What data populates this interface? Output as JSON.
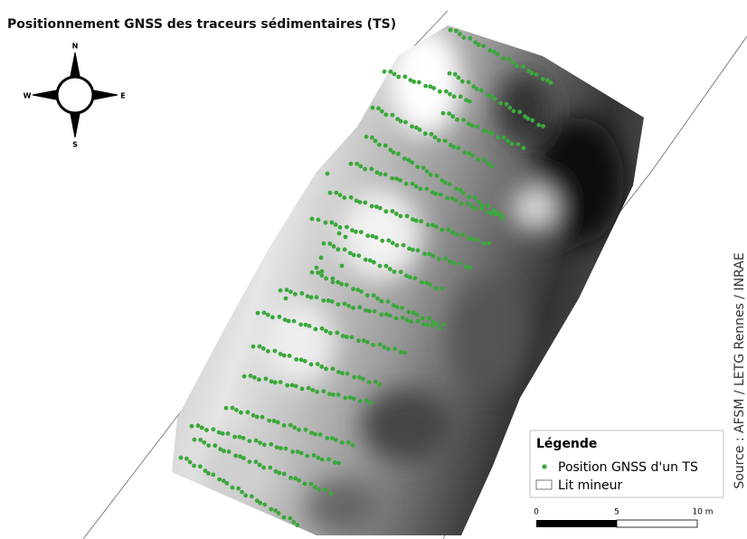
{
  "title": "Positionnement GNSS des traceurs sédimentaires (TS)",
  "compass": {
    "north": "N",
    "south": "S",
    "west": "W",
    "east": "E"
  },
  "legend": {
    "title": "Légende",
    "entries": [
      "Position GNSS d'un TS",
      "Lit mineur"
    ]
  },
  "scale_bar": {
    "labels": [
      "0",
      "5",
      "10 m"
    ]
  },
  "source": "Source : AFSM / LETG Rennes / INRAE"
}
